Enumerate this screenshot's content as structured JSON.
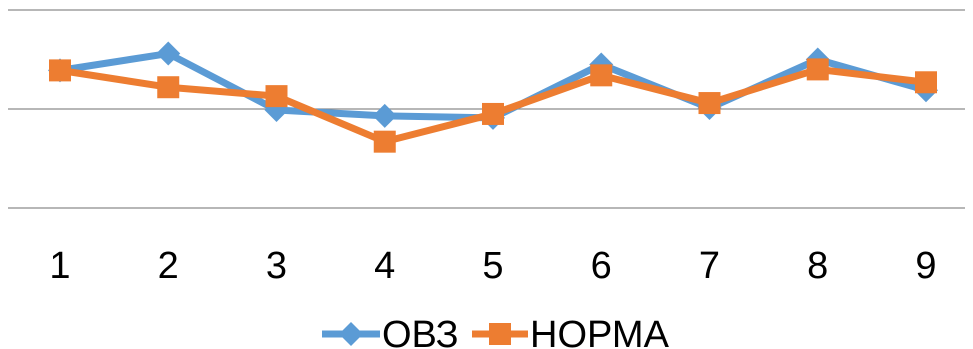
{
  "chart_data": {
    "type": "line",
    "categories": [
      "1",
      "2",
      "3",
      "4",
      "5",
      "6",
      "7",
      "8",
      "9"
    ],
    "series": [
      {
        "name": "ОВЗ",
        "color": "#5B9BD5",
        "marker": "diamond",
        "values": [
          1.39,
          1.56,
          0.99,
          0.93,
          0.91,
          1.45,
          1.01,
          1.5,
          1.19
        ]
      },
      {
        "name": "НОРМА",
        "color": "#ED7D31",
        "marker": "square",
        "values": [
          1.39,
          1.22,
          1.13,
          0.67,
          0.95,
          1.34,
          1.06,
          1.4,
          1.27
        ]
      }
    ],
    "title": "",
    "xlabel": "",
    "ylabel": "",
    "ylim": [
      0,
      2
    ],
    "grid": true,
    "legend_position": "bottom"
  }
}
